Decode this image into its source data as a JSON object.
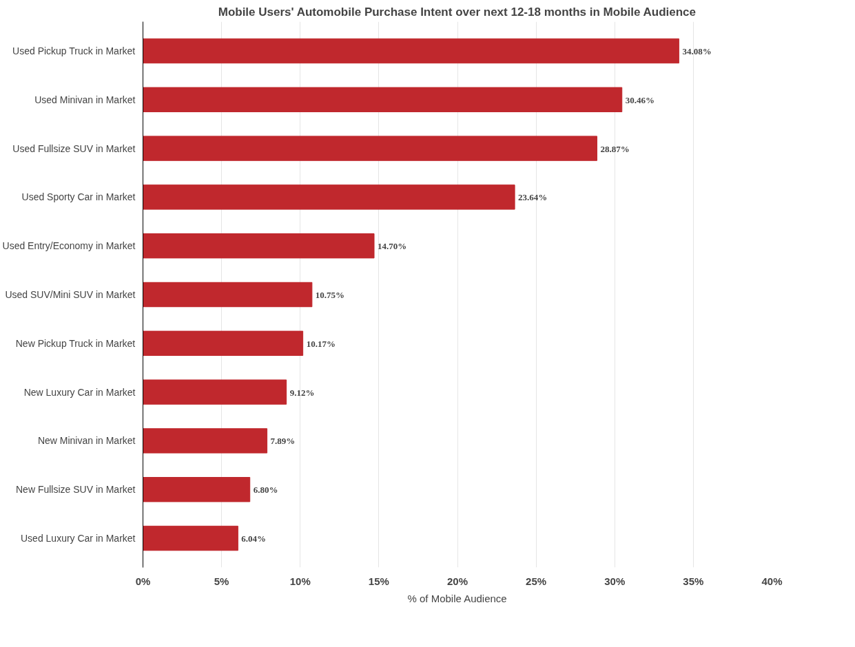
{
  "chart_data": {
    "type": "bar",
    "orientation": "horizontal",
    "title": "Mobile Users' Automobile Purchase Intent over next 12-18 months in Mobile Audience",
    "xlabel": "% of Mobile Audience",
    "categories": [
      "Used Pickup Truck in Market",
      "Used Minivan in Market",
      "Used Fullsize SUV in Market",
      "Used Sporty Car in Market",
      "Used Entry/Economy in Market",
      "Used SUV/Mini SUV in Market",
      "New Pickup Truck in Market",
      "New Luxury Car in Market",
      "New Minivan in Market",
      "New Fullsize SUV in Market",
      "Used Luxury Car in Market"
    ],
    "values": [
      34.08,
      30.46,
      28.87,
      23.64,
      14.7,
      10.75,
      10.17,
      9.12,
      7.89,
      6.8,
      6.04
    ],
    "value_labels": [
      "34.08%",
      "30.46%",
      "28.87%",
      "23.64%",
      "14.70%",
      "10.75%",
      "10.17%",
      "9.12%",
      "7.89%",
      "6.80%",
      "6.04%"
    ],
    "color": "#c0282d",
    "xlim": [
      0,
      40
    ],
    "xticks": [
      {
        "value": 0,
        "label": "0%"
      },
      {
        "value": 5,
        "label": "5%"
      },
      {
        "value": 10,
        "label": "10%"
      },
      {
        "value": 15,
        "label": "15%"
      },
      {
        "value": 20,
        "label": "20%"
      },
      {
        "value": 25,
        "label": "25%"
      },
      {
        "value": 30,
        "label": "30%"
      },
      {
        "value": 35,
        "label": "35%"
      },
      {
        "value": 40,
        "label": "40%"
      }
    ],
    "grid": "x"
  }
}
